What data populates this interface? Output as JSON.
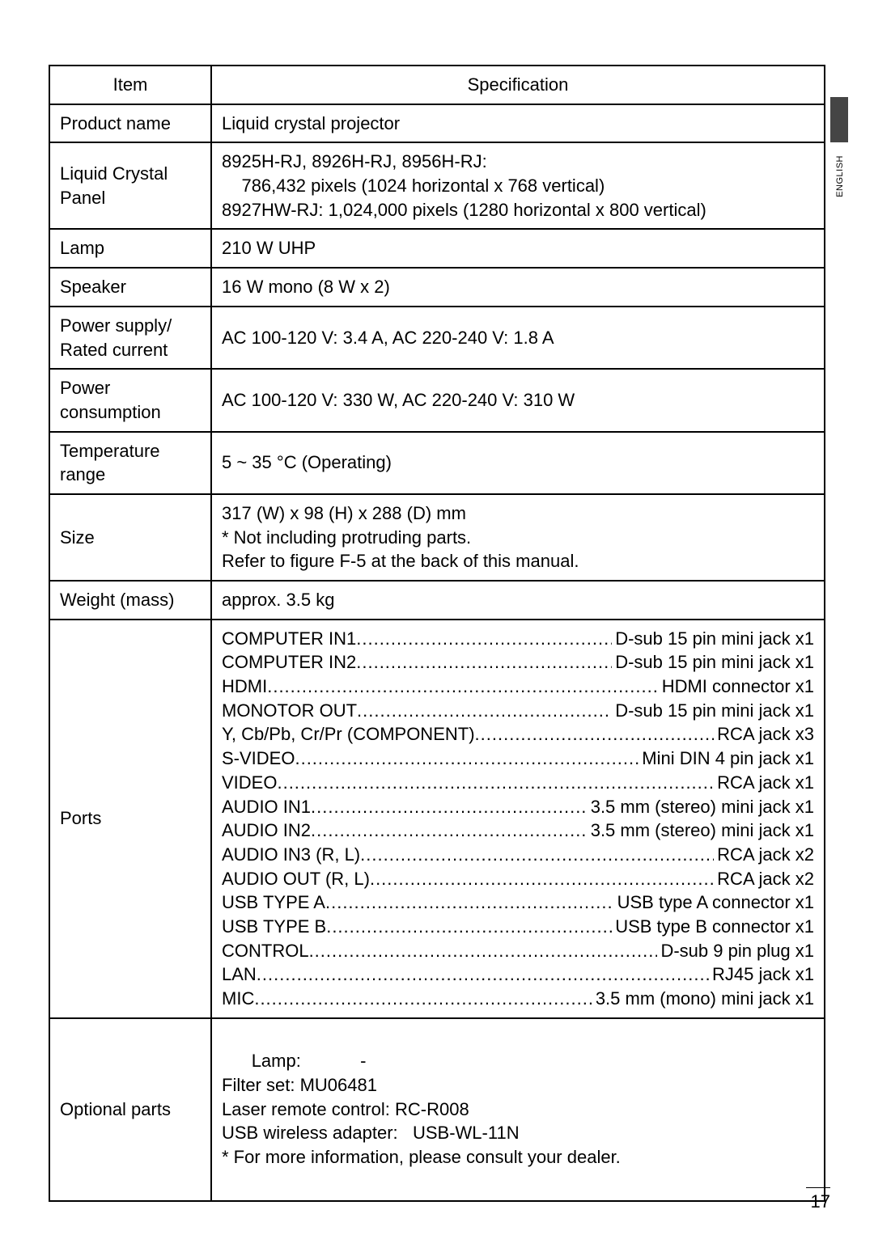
{
  "sideLabel": "ENGLISH",
  "pageNumber": "17",
  "header": {
    "item": "Item",
    "spec": "Speciﬁcation"
  },
  "rows": {
    "productName": {
      "label": "Product name",
      "value": "Liquid crystal projector"
    },
    "panel": {
      "label": "Liquid Crystal Panel",
      "line1": "8925H-RJ, 8926H-RJ, 8956H-RJ:",
      "line2": "786,432 pixels (1024 horizontal x 768 vertical)",
      "line3": "8927HW-RJ: 1,024,000 pixels (1280 horizontal x 800 vertical)"
    },
    "lamp": {
      "label": "Lamp",
      "value": "210 W UHP"
    },
    "speaker": {
      "label": "Speaker",
      "value": "16 W mono (8 W x 2)"
    },
    "power": {
      "label": "Power supply/\nRated current",
      "value": "AC 100-120 V: 3.4 A, AC 220-240 V: 1.8 A"
    },
    "consumption": {
      "label": "Power\nconsumption",
      "value": "AC 100-120 V: 330 W, AC 220-240 V: 310 W"
    },
    "temp": {
      "label": "Temperature\nrange",
      "value": "5 ~ 35 °C (Operating)"
    },
    "size": {
      "label": "Size",
      "line1": "317 (W) x 98 (H) x 288 (D) mm",
      "line2": "* Not including protruding parts.",
      "line3": "Refer to ﬁgure F-5 at the back of this manual."
    },
    "weight": {
      "label": "Weight (mass)",
      "value": "approx. 3.5 kg"
    },
    "ports": {
      "label": "Ports",
      "items": [
        {
          "l": "COMPUTER IN1",
          "r": "D-sub 15 pin mini jack x1"
        },
        {
          "l": "COMPUTER IN2",
          "r": "D-sub 15 pin mini jack x1"
        },
        {
          "l": "HDMI",
          "r": "HDMI connector x1"
        },
        {
          "l": "MONOTOR OUT",
          "r": "D-sub 15 pin mini jack x1"
        },
        {
          "l": "Y, Cb/Pb, Cr/Pr  (COMPONENT)",
          "r": "RCA jack x3"
        },
        {
          "l": "S-VIDEO",
          "r": "Mini DIN 4 pin jack x1"
        },
        {
          "l": "VIDEO",
          "r": "RCA jack x1"
        },
        {
          "l": "AUDIO IN1",
          "r": "3.5 mm (stereo) mini jack x1"
        },
        {
          "l": "AUDIO IN2",
          "r": "3.5 mm (stereo) mini jack x1"
        },
        {
          "l": "AUDIO IN3 (R, L)",
          "r": "RCA jack x2"
        },
        {
          "l": "AUDIO OUT (R, L)",
          "r": "RCA jack x2"
        },
        {
          "l": "USB TYPE A",
          "r": "USB type A connector x1"
        },
        {
          "l": "USB TYPE B",
          "r": "USB type B connector x1"
        },
        {
          "l": "CONTROL",
          "r": "D-sub 9 pin plug x1"
        },
        {
          "l": "LAN",
          "r": "RJ45 jack x1"
        },
        {
          "l": "MIC",
          "r": "3.5 mm (mono) mini jack x1"
        }
      ]
    },
    "optional": {
      "label": "Optional parts",
      "line1": "Lamp:            -",
      "line2": "Filter set: MU06481",
      "line3": "Laser remote control: RC-R008",
      "line4": "USB wireless adapter:   USB-WL-11N",
      "line5": "* For more information, please consult your dealer."
    }
  }
}
